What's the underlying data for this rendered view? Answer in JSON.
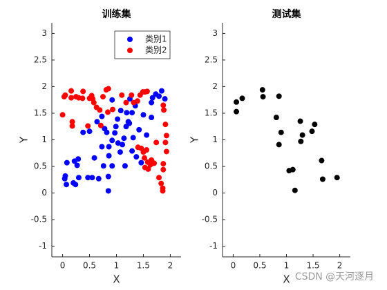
{
  "chart_data": [
    {
      "type": "scatter",
      "title": "训练集",
      "x_label": "X",
      "y_label": "Y",
      "xlim": [
        -0.2,
        2.2
      ],
      "ylim": [
        -1.2,
        3.2
      ],
      "xticks": [
        0,
        0.5,
        1,
        1.5,
        2
      ],
      "yticks": [
        -1,
        -0.5,
        0,
        0.5,
        1,
        1.5,
        2,
        2.5,
        3
      ],
      "legend": "northeast",
      "series": [
        {
          "name": "类别1",
          "color": "#0000ff",
          "x": [
            0.05,
            0.04,
            0.08,
            0.07,
            0.22,
            0.24,
            0.2,
            0.27,
            0.29,
            0.3,
            0.38,
            0.47,
            0.55,
            0.5,
            0.59,
            0.67,
            0.64,
            0.73,
            0.73,
            0.76,
            0.78,
            0.82,
            0.86,
            0.86,
            0.85,
            0.85,
            0.92,
            0.92,
            0.92,
            0.97,
            0.99,
            1.02,
            1.03,
            1.07,
            1.11,
            1.08,
            1.14,
            1.16,
            1.18,
            1.19,
            1.22,
            1.24,
            1.25,
            1.29,
            1.29,
            1.31,
            1.35,
            1.37,
            1.42,
            1.46,
            1.5,
            1.56,
            1.65,
            1.65,
            1.67,
            1.73,
            1.79,
            1.84,
            1.9
          ],
          "values": [
            0.32,
            0.27,
            0.57,
            0.16,
            0.6,
            0.16,
            0.19,
            0.52,
            0.64,
            0.29,
            1.14,
            0.29,
            0.29,
            1.16,
            0.66,
            0.27,
            1.34,
            1.44,
            0.87,
            0.51,
            1.21,
            1.14,
            0.87,
            0.7,
            0.31,
            0.04,
            0.99,
            0.51,
            1.75,
            1.13,
            1.25,
            1.39,
            0.94,
            0.77,
            0.91,
            1.55,
            1.03,
            0.51,
            1.25,
            1.51,
            1.34,
            1.31,
            1.77,
            1.51,
            0.79,
            1.04,
            1.64,
            0.68,
            1.19,
            0.57,
            1.47,
            1.09,
            1.42,
            1.7,
            1.79,
            1.86,
            1.82,
            1.92,
            1.77
          ]
        },
        {
          "name": "类别2",
          "color": "#ff0000",
          "x": [
            0.0,
            0.03,
            0.05,
            0.16,
            0.16,
            0.18,
            0.18,
            0.25,
            0.3,
            0.37,
            0.38,
            0.47,
            0.5,
            0.54,
            0.56,
            0.58,
            0.63,
            0.69,
            0.71,
            0.75,
            0.81,
            0.84,
            0.85,
            0.93,
            1.1,
            1.18,
            1.28,
            1.32,
            1.39,
            1.44,
            1.49,
            1.53,
            1.57,
            1.4,
            1.46,
            1.5,
            1.52,
            1.53,
            1.56,
            1.58,
            1.59,
            1.65,
            1.63,
            1.7,
            1.74,
            1.79,
            1.83,
            1.86,
            1.87,
            1.87,
            1.91,
            1.93,
            1.93,
            1.87,
            1.88,
            1.91,
            1.86
          ],
          "values": [
            1.47,
            1.81,
            1.84,
            1.92,
            1.79,
            1.34,
            1.26,
            1.81,
            1.79,
            1.78,
            1.91,
            1.26,
            1.78,
            1.83,
            1.77,
            1.7,
            1.61,
            1.56,
            1.27,
            1.81,
            1.94,
            1.52,
            1.96,
            1.57,
            1.84,
            1.7,
            1.84,
            1.7,
            1.73,
            1.84,
            1.9,
            1.9,
            1.91,
            0.86,
            0.84,
            0.77,
            0.66,
            0.48,
            0.81,
            0.58,
            0.45,
            0.62,
            0.53,
            0.56,
            0.95,
            0.29,
            0.18,
            0.09,
            0.44,
            0.55,
            0.95,
            0.78,
            1.08,
            1.65,
            1.56,
            1.29,
            0.04
          ]
        }
      ]
    },
    {
      "type": "scatter",
      "title": "测试集",
      "x_label": "X",
      "y_label": "Y",
      "xlim": [
        -0.2,
        2.2
      ],
      "ylim": [
        -1.2,
        3.2
      ],
      "xticks": [
        0,
        0.5,
        1,
        1.5,
        2
      ],
      "yticks": [
        -1,
        -0.5,
        0,
        0.5,
        1,
        1.5,
        2,
        2.5,
        3
      ],
      "series": [
        {
          "color": "#000000",
          "x": [
            0.06,
            0.06,
            0.17,
            0.55,
            0.56,
            0.86,
            0.81,
            0.9,
            0.86,
            1.05,
            1.12,
            1.16,
            1.26,
            1.3,
            1.27,
            1.48,
            1.53,
            1.66,
            1.68,
            1.95
          ],
          "values": [
            1.71,
            1.53,
            1.78,
            1.94,
            1.81,
            1.82,
            1.42,
            1.14,
            0.91,
            0.42,
            0.44,
            0.05,
            1.35,
            1.09,
            0.97,
            1.16,
            1.29,
            0.61,
            0.26,
            0.29
          ]
        }
      ]
    }
  ],
  "watermark": "CSDN @天河逐月"
}
